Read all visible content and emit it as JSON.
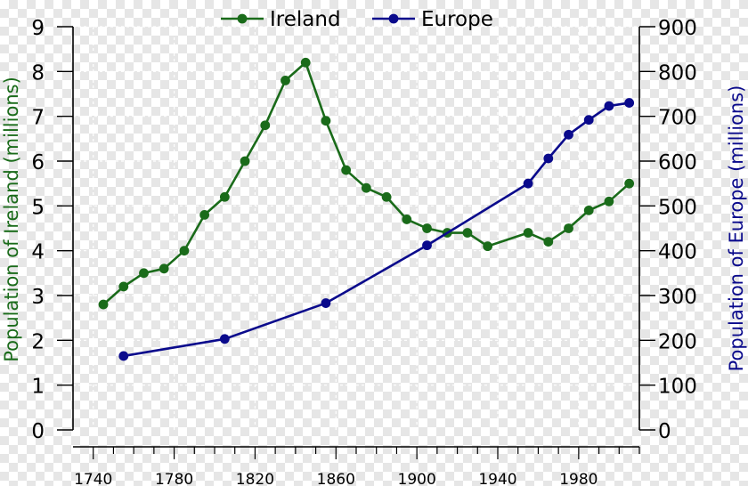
{
  "chart_data": {
    "type": "line",
    "xlabel": "",
    "x_ticks": [
      1740,
      1780,
      1820,
      1860,
      1900,
      1940,
      1980
    ],
    "xlim": [
      1730,
      2010
    ],
    "y_left": {
      "label": "Population of Ireland (millions)",
      "ticks": [
        0,
        1,
        2,
        3,
        4,
        5,
        6,
        7,
        8,
        9
      ],
      "ylim": [
        0,
        9
      ],
      "color": "#1a6b1a"
    },
    "y_right": {
      "label": "Population of Europe (millions)",
      "ticks": [
        0,
        100,
        200,
        300,
        400,
        500,
        600,
        700,
        800,
        900
      ],
      "ylim": [
        0,
        900
      ],
      "color": "#0a0a8c"
    },
    "grid": true,
    "legend_position": "top",
    "series": [
      {
        "name": "Ireland",
        "axis": "left",
        "color": "#1a6b1a",
        "points": [
          [
            1745,
            2.8
          ],
          [
            1755,
            3.2
          ],
          [
            1765,
            3.5
          ],
          [
            1775,
            3.6
          ],
          [
            1785,
            4.0
          ],
          [
            1795,
            4.8
          ],
          [
            1805,
            5.2
          ],
          [
            1815,
            6.0
          ],
          [
            1825,
            6.8
          ],
          [
            1835,
            7.8
          ],
          [
            1845,
            8.2
          ],
          [
            1855,
            6.9
          ],
          [
            1865,
            5.8
          ],
          [
            1875,
            5.4
          ],
          [
            1885,
            5.2
          ],
          [
            1895,
            4.7
          ],
          [
            1905,
            4.5
          ],
          [
            1915,
            4.4
          ],
          [
            1925,
            4.4
          ],
          [
            1935,
            4.1
          ],
          [
            1955,
            4.4
          ],
          [
            1965,
            4.2
          ],
          [
            1975,
            4.5
          ],
          [
            1985,
            4.9
          ],
          [
            1995,
            5.1
          ],
          [
            2005,
            5.5
          ]
        ]
      },
      {
        "name": "Europe",
        "axis": "right",
        "color": "#0a0a8c",
        "points": [
          [
            1755,
            165
          ],
          [
            1805,
            203
          ],
          [
            1855,
            283
          ],
          [
            1905,
            412
          ],
          [
            1955,
            550
          ],
          [
            1965,
            606
          ],
          [
            1975,
            659
          ],
          [
            1985,
            692
          ],
          [
            1995,
            723
          ],
          [
            2005,
            730
          ]
        ]
      }
    ]
  }
}
